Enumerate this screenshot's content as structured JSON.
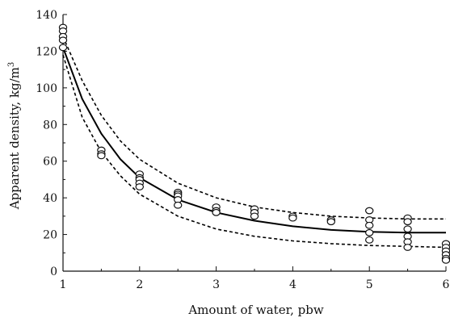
{
  "chart_data": {
    "type": "scatter",
    "xlabel": "Amount of water, pbw",
    "ylabel": "Apparent density, kg/m",
    "ylabel_superscript": "3",
    "xlim": [
      1,
      6
    ],
    "ylim": [
      0,
      140
    ],
    "x_ticks": [
      "1",
      "2",
      "3",
      "4",
      "5",
      "6"
    ],
    "y_ticks": [
      "0",
      "20",
      "40",
      "60",
      "80",
      "100",
      "120",
      "140"
    ],
    "grid": false,
    "series": [
      {
        "kind": "scatter",
        "marker": "open-circle",
        "points": [
          {
            "x": 1.0,
            "y": 133
          },
          {
            "x": 1.0,
            "y": 131
          },
          {
            "x": 1.0,
            "y": 128
          },
          {
            "x": 1.0,
            "y": 126
          },
          {
            "x": 1.0,
            "y": 122
          },
          {
            "x": 1.5,
            "y": 66
          },
          {
            "x": 1.5,
            "y": 64
          },
          {
            "x": 1.5,
            "y": 63
          },
          {
            "x": 2.0,
            "y": 53
          },
          {
            "x": 2.0,
            "y": 51
          },
          {
            "x": 2.0,
            "y": 50
          },
          {
            "x": 2.0,
            "y": 48
          },
          {
            "x": 2.0,
            "y": 46
          },
          {
            "x": 2.5,
            "y": 43
          },
          {
            "x": 2.5,
            "y": 42
          },
          {
            "x": 2.5,
            "y": 41
          },
          {
            "x": 2.5,
            "y": 39
          },
          {
            "x": 2.5,
            "y": 36
          },
          {
            "x": 3.0,
            "y": 35
          },
          {
            "x": 3.0,
            "y": 33
          },
          {
            "x": 3.0,
            "y": 32
          },
          {
            "x": 3.5,
            "y": 34
          },
          {
            "x": 3.5,
            "y": 32
          },
          {
            "x": 3.5,
            "y": 30
          },
          {
            "x": 4.0,
            "y": 30
          },
          {
            "x": 4.0,
            "y": 29
          },
          {
            "x": 4.5,
            "y": 28
          },
          {
            "x": 4.5,
            "y": 27
          },
          {
            "x": 5.0,
            "y": 33
          },
          {
            "x": 5.0,
            "y": 28
          },
          {
            "x": 5.0,
            "y": 25
          },
          {
            "x": 5.0,
            "y": 21
          },
          {
            "x": 5.0,
            "y": 17
          },
          {
            "x": 5.5,
            "y": 29
          },
          {
            "x": 5.5,
            "y": 27
          },
          {
            "x": 5.5,
            "y": 23
          },
          {
            "x": 5.5,
            "y": 19
          },
          {
            "x": 5.5,
            "y": 16
          },
          {
            "x": 5.5,
            "y": 13
          },
          {
            "x": 6.0,
            "y": 15
          },
          {
            "x": 6.0,
            "y": 13
          },
          {
            "x": 6.0,
            "y": 11
          },
          {
            "x": 6.0,
            "y": 9
          },
          {
            "x": 6.0,
            "y": 7
          },
          {
            "x": 6.0,
            "y": 6
          }
        ]
      },
      {
        "kind": "line",
        "style": "solid",
        "points": [
          {
            "x": 1.0,
            "y": 122
          },
          {
            "x": 1.25,
            "y": 94
          },
          {
            "x": 1.5,
            "y": 75
          },
          {
            "x": 1.75,
            "y": 61
          },
          {
            "x": 2.0,
            "y": 51
          },
          {
            "x": 2.5,
            "y": 39
          },
          {
            "x": 3.0,
            "y": 32
          },
          {
            "x": 3.5,
            "y": 27.5
          },
          {
            "x": 4.0,
            "y": 24.5
          },
          {
            "x": 4.5,
            "y": 22.5
          },
          {
            "x": 5.0,
            "y": 21.5
          },
          {
            "x": 5.5,
            "y": 21
          },
          {
            "x": 6.0,
            "y": 21
          }
        ]
      },
      {
        "kind": "line",
        "style": "dashed",
        "points": [
          {
            "x": 1.0,
            "y": 128
          },
          {
            "x": 1.25,
            "y": 104
          },
          {
            "x": 1.5,
            "y": 85
          },
          {
            "x": 1.75,
            "y": 71
          },
          {
            "x": 2.0,
            "y": 61
          },
          {
            "x": 2.5,
            "y": 48
          },
          {
            "x": 3.0,
            "y": 40
          },
          {
            "x": 3.5,
            "y": 35
          },
          {
            "x": 4.0,
            "y": 32
          },
          {
            "x": 4.5,
            "y": 30
          },
          {
            "x": 5.0,
            "y": 29
          },
          {
            "x": 5.5,
            "y": 28.5
          },
          {
            "x": 6.0,
            "y": 28.5
          }
        ]
      },
      {
        "kind": "line",
        "style": "dashed",
        "points": [
          {
            "x": 1.0,
            "y": 118
          },
          {
            "x": 1.25,
            "y": 84
          },
          {
            "x": 1.5,
            "y": 65
          },
          {
            "x": 1.75,
            "y": 52
          },
          {
            "x": 2.0,
            "y": 42
          },
          {
            "x": 2.5,
            "y": 30
          },
          {
            "x": 3.0,
            "y": 23
          },
          {
            "x": 3.5,
            "y": 19
          },
          {
            "x": 4.0,
            "y": 16.5
          },
          {
            "x": 4.5,
            "y": 15
          },
          {
            "x": 5.0,
            "y": 14
          },
          {
            "x": 5.5,
            "y": 13.5
          },
          {
            "x": 6.0,
            "y": 13
          }
        ]
      }
    ],
    "colors": {
      "axis": "#111111",
      "line": "#000000",
      "marker_stroke": "#111111",
      "marker_fill": "#ffffff"
    }
  }
}
